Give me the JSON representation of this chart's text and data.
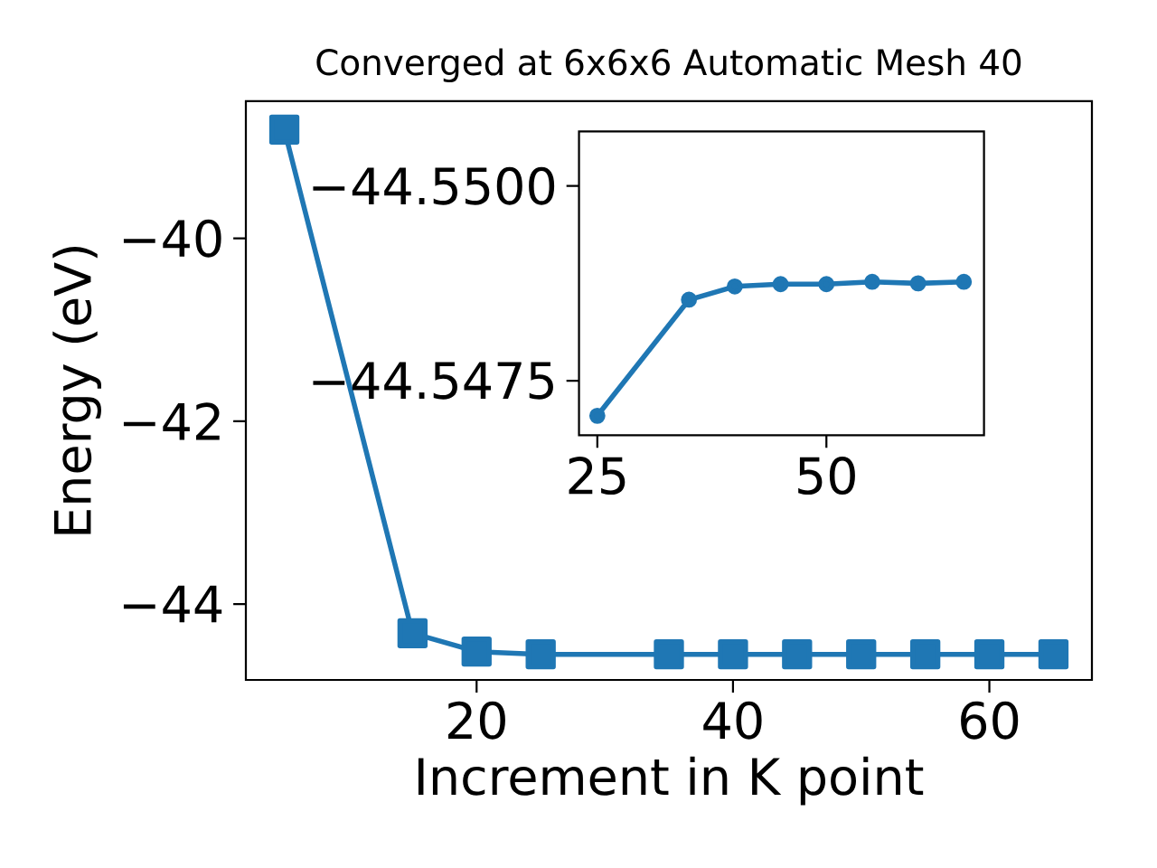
{
  "chart_data": [
    {
      "type": "line",
      "title": "Converged at 6x6x6 Automatic Mesh 40",
      "xlabel": "Increment in K point",
      "ylabel": "Energy (eV)",
      "x": [
        5,
        15,
        20,
        25,
        35,
        40,
        45,
        50,
        55,
        60,
        65
      ],
      "series": [
        {
          "color": "#1f77b4",
          "values": [
            -38.81,
            -44.32,
            -44.52,
            -44.55,
            -44.55,
            -44.55,
            -44.55,
            -44.55,
            -44.55,
            -44.55,
            -44.55
          ]
        }
      ],
      "xlim": [
        2,
        68
      ],
      "ylim": [
        -44.83,
        -38.5
      ],
      "xticks": [
        20,
        40,
        60
      ],
      "yticks": [
        {
          "value": -44,
          "label": "−44"
        },
        {
          "value": -42,
          "label": "−42"
        },
        {
          "value": -40,
          "label": "−40"
        }
      ],
      "marker": "square",
      "line_style": "solid"
    },
    {
      "type": "line",
      "x": [
        25,
        35,
        40,
        45,
        50,
        55,
        60,
        65
      ],
      "series": [
        {
          "color": "#1f77b4",
          "values": [
            -44.54705,
            -44.54854,
            -44.54871,
            -44.54874,
            -44.54874,
            -44.54877,
            -44.54875,
            -44.54877
          ]
        }
      ],
      "xlim": [
        23,
        67.2
      ],
      "ylim": [
        -44.5468,
        -44.5507
      ],
      "xticks": [
        25,
        50
      ],
      "yticks": [
        {
          "value": -44.5475,
          "label": "−44.5475"
        },
        {
          "value": -44.55,
          "label": "−44.5500"
        }
      ],
      "marker": "circle",
      "line_style": "solid"
    }
  ]
}
